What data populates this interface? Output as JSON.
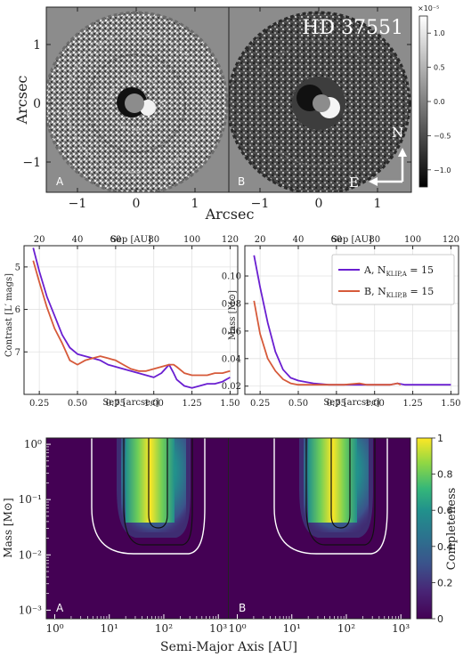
{
  "chart_data": [
    {
      "type": "heatmap",
      "title": "HD 37551",
      "panels": [
        "A",
        "B"
      ],
      "xlabel": "Arcsec",
      "ylabel": "Arcsec",
      "xticks": [
        "−1",
        "0",
        "1"
      ],
      "yticks": [
        "1",
        "0",
        "−1"
      ],
      "colorbar": {
        "multiplier": "×10⁻⁵",
        "ticks": [
          "1.0",
          "0.5",
          "0.0",
          "−0.5",
          "−1.0"
        ],
        "range": [
          -1.25,
          1.25
        ]
      },
      "compass": {
        "north": "N",
        "east": "E"
      }
    },
    {
      "type": "line",
      "xlabel": "Sep [arcsec]",
      "top_xlabel": "Sep [AU]",
      "ylabel": "Contrast [L′ mags]",
      "xlim": [
        0.15,
        1.55
      ],
      "ylim": [
        4.5,
        8.0
      ],
      "ylim_inverted": true,
      "xticks": [
        "0.25",
        "0.50",
        "0.75",
        "1.00",
        "1.25",
        "1.50"
      ],
      "top_xticks": [
        "20",
        "40",
        "60",
        "80",
        "100",
        "120"
      ],
      "yticks": [
        "5",
        "6",
        "7"
      ],
      "series": [
        {
          "color": "#6a1fd1",
          "x": [
            0.21,
            0.25,
            0.3,
            0.35,
            0.4,
            0.45,
            0.5,
            0.55,
            0.6,
            0.65,
            0.7,
            0.75,
            0.8,
            0.85,
            0.9,
            0.95,
            1.0,
            1.05,
            1.1,
            1.13,
            1.15,
            1.2,
            1.25,
            1.3,
            1.35,
            1.4,
            1.45,
            1.5
          ],
          "y": [
            4.55,
            5.1,
            5.7,
            6.15,
            6.6,
            6.9,
            7.05,
            7.1,
            7.15,
            7.2,
            7.3,
            7.35,
            7.4,
            7.45,
            7.5,
            7.55,
            7.6,
            7.5,
            7.3,
            7.5,
            7.65,
            7.8,
            7.85,
            7.8,
            7.75,
            7.75,
            7.7,
            7.6
          ]
        },
        {
          "color": "#d65a3a",
          "x": [
            0.21,
            0.25,
            0.3,
            0.35,
            0.4,
            0.45,
            0.5,
            0.55,
            0.6,
            0.65,
            0.7,
            0.75,
            0.8,
            0.85,
            0.9,
            0.95,
            1.0,
            1.05,
            1.1,
            1.13,
            1.15,
            1.2,
            1.25,
            1.3,
            1.35,
            1.4,
            1.45,
            1.5
          ],
          "y": [
            4.85,
            5.35,
            5.95,
            6.45,
            6.8,
            7.2,
            7.3,
            7.2,
            7.15,
            7.1,
            7.15,
            7.2,
            7.3,
            7.4,
            7.45,
            7.45,
            7.4,
            7.35,
            7.3,
            7.3,
            7.35,
            7.5,
            7.55,
            7.55,
            7.55,
            7.5,
            7.5,
            7.45
          ]
        }
      ]
    },
    {
      "type": "line",
      "xlabel": "Sep [arcsec]",
      "top_xlabel": "Sep [AU]",
      "ylabel": "Mass [M⊙]",
      "xlim": [
        0.15,
        1.55
      ],
      "ylim": [
        0.014,
        0.122
      ],
      "xticks": [
        "0.25",
        "0.50",
        "0.75",
        "1.00",
        "1.25",
        "1.50"
      ],
      "top_xticks": [
        "20",
        "40",
        "60",
        "80",
        "100",
        "120"
      ],
      "yticks": [
        "0.02",
        "0.04",
        "0.06",
        "0.08",
        "0.10"
      ],
      "legend": {
        "placement": "top-right",
        "items": [
          {
            "label": "A, N",
            "sub": "KLIP,A",
            "suffix": " = 15",
            "color": "#6a1fd1"
          },
          {
            "label": "B, N",
            "sub": "KLIP,B",
            "suffix": " = 15",
            "color": "#d65a3a"
          }
        ]
      },
      "series": [
        {
          "color": "#6a1fd1",
          "x": [
            0.21,
            0.25,
            0.3,
            0.35,
            0.4,
            0.45,
            0.5,
            0.55,
            0.6,
            0.7,
            0.8,
            0.9,
            1.0,
            1.1,
            1.15,
            1.2,
            1.3,
            1.4,
            1.5
          ],
          "y": [
            0.115,
            0.092,
            0.066,
            0.045,
            0.032,
            0.026,
            0.024,
            0.023,
            0.022,
            0.021,
            0.021,
            0.021,
            0.021,
            0.021,
            0.022,
            0.021,
            0.021,
            0.021,
            0.021
          ]
        },
        {
          "color": "#d65a3a",
          "x": [
            0.21,
            0.25,
            0.3,
            0.35,
            0.4,
            0.45,
            0.5,
            0.55,
            0.6,
            0.7,
            0.8,
            0.9,
            0.95,
            1.0,
            1.05,
            1.1,
            1.15,
            1.17
          ],
          "y": [
            0.082,
            0.058,
            0.04,
            0.031,
            0.025,
            0.022,
            0.021,
            0.021,
            0.021,
            0.021,
            0.021,
            0.022,
            0.021,
            0.021,
            0.021,
            0.021,
            0.022,
            0.021
          ]
        }
      ]
    },
    {
      "type": "heatmap",
      "panels": [
        "A",
        "B"
      ],
      "xlabel": "Semi-Major Axis [AU]",
      "ylabel": "Mass [M⊙]",
      "xlog": true,
      "ylog": true,
      "xlim": [
        0.7,
        1500
      ],
      "ylim": [
        0.0007,
        1.3
      ],
      "xticks": [
        "10⁰",
        "10¹",
        "10²",
        "10³"
      ],
      "yticks": [
        "10⁰",
        "10⁻¹",
        "10⁻²",
        "10⁻³"
      ],
      "colorbar": {
        "label": "Completeness",
        "ticks": [
          "1",
          "0.8",
          "0.6",
          "0.4",
          "0.2",
          "0"
        ],
        "range": [
          0,
          1
        ]
      }
    }
  ]
}
